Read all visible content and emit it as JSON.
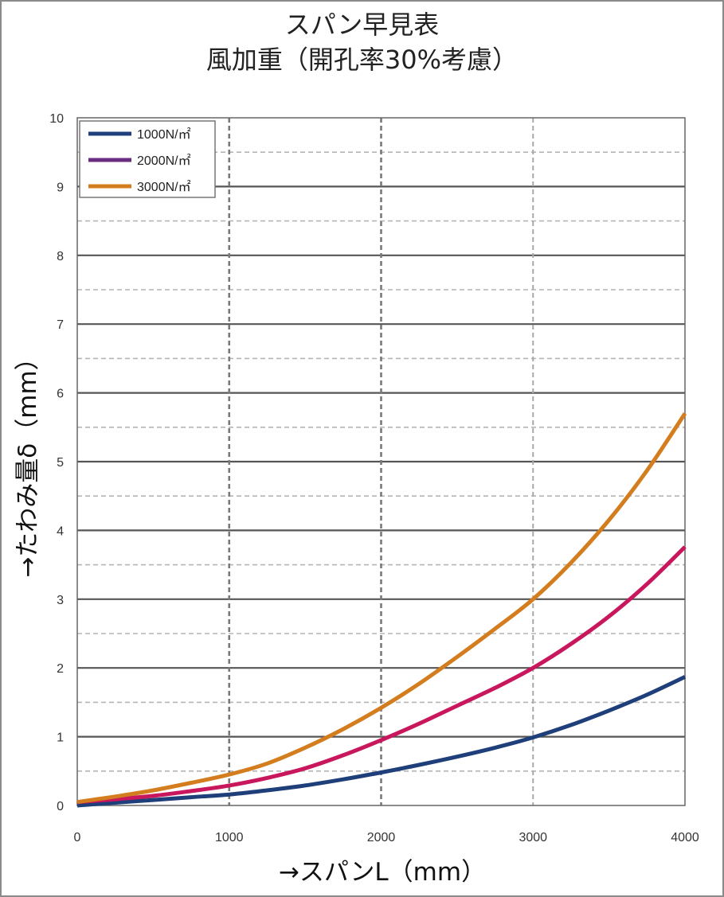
{
  "chart_data": {
    "type": "line",
    "title": "スパン早見表",
    "subtitle": "風加重（開孔率30%考慮）",
    "xlabel": "→スパンL（mm）",
    "ylabel": "→たわみ量δ（mm）",
    "xlim": [
      0,
      4000
    ],
    "ylim": [
      0,
      10
    ],
    "x_ticks": [
      "0",
      "1000",
      "2000",
      "3000",
      "4000"
    ],
    "y_ticks": [
      "0",
      "1",
      "2",
      "3",
      "4",
      "5",
      "6",
      "7",
      "8",
      "9",
      "10"
    ],
    "grid": true,
    "legend_position": "top-left",
    "x": [
      0,
      250,
      500,
      750,
      1000,
      1250,
      1500,
      1750,
      2000,
      2250,
      2500,
      2750,
      3000,
      3250,
      3500,
      3750,
      4000
    ],
    "series": [
      {
        "name": "1000N/㎡",
        "color": "#1f3f7a",
        "values": [
          0.0,
          0.04,
          0.08,
          0.12,
          0.16,
          0.22,
          0.29,
          0.38,
          0.48,
          0.59,
          0.71,
          0.84,
          0.99,
          1.17,
          1.38,
          1.61,
          1.87
        ]
      },
      {
        "name": "2000N/㎡",
        "legend_color": "#6a2c82",
        "color": "#c8175d",
        "values": [
          0.05,
          0.09,
          0.14,
          0.21,
          0.29,
          0.4,
          0.54,
          0.73,
          0.95,
          1.19,
          1.45,
          1.71,
          2.0,
          2.35,
          2.75,
          3.22,
          3.76
        ]
      },
      {
        "name": "3000N/㎡",
        "color": "#d47d1e",
        "values": [
          0.05,
          0.13,
          0.22,
          0.33,
          0.45,
          0.61,
          0.84,
          1.11,
          1.42,
          1.77,
          2.16,
          2.57,
          3.0,
          3.53,
          4.15,
          4.87,
          5.7
        ]
      }
    ]
  }
}
